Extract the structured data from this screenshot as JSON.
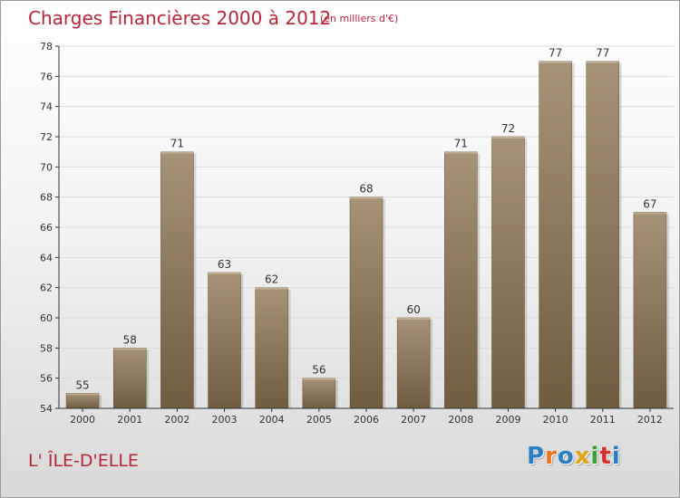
{
  "header": {
    "title": "Charges Financières 2000 à 2012",
    "subtitle": "(en milliers d'€)"
  },
  "footer": {
    "commune": "L' ÎLE-D'ELLE",
    "logo_letters": [
      "P",
      "r",
      "o",
      "x",
      "i",
      "t",
      "i"
    ],
    "logo_colors": [
      "#2a7fc4",
      "#e8731e",
      "#2a7fc4",
      "#e3a514",
      "#3a9f3a",
      "#d4302f",
      "#2a7fc4"
    ]
  },
  "colors": {
    "bar_top": "#a69378",
    "bar_bottom": "#6f5d40",
    "accent": "#b5273b"
  },
  "chart_data": {
    "type": "bar",
    "title": "Charges Financières 2000 à 2012",
    "subtitle": "(en milliers d'€)",
    "categories": [
      "2000",
      "2001",
      "2002",
      "2003",
      "2004",
      "2005",
      "2006",
      "2007",
      "2008",
      "2009",
      "2010",
      "2011",
      "2012"
    ],
    "values": [
      55,
      58,
      71,
      63,
      62,
      56,
      68,
      60,
      71,
      72,
      77,
      77,
      67
    ],
    "ylim": [
      54,
      78
    ],
    "yticks": [
      54,
      56,
      58,
      60,
      62,
      64,
      66,
      68,
      70,
      72,
      74,
      76,
      78
    ],
    "grid": true,
    "legend": "none",
    "xlabel": "",
    "ylabel": ""
  }
}
